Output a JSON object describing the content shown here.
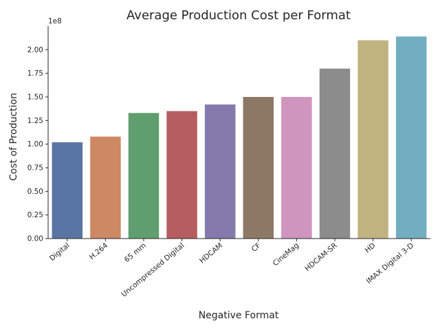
{
  "chart_data": {
    "type": "bar",
    "title": "Average Production Cost per Format",
    "xlabel": "Negative Format",
    "ylabel": "Cost of Production",
    "y_offset_label": "1e8",
    "y_scale": 100000000,
    "ylim": [
      0,
      2.25
    ],
    "yticks": [
      0.0,
      0.25,
      0.5,
      0.75,
      1.0,
      1.25,
      1.5,
      1.75,
      2.0
    ],
    "ytick_labels": [
      "0.00",
      "0.25",
      "0.50",
      "0.75",
      "1.00",
      "1.25",
      "1.50",
      "1.75",
      "2.00"
    ],
    "categories": [
      "Digital",
      "H.264",
      "65 mm",
      "Uncompressed Digital",
      "HDCAM",
      "CF",
      "CineMag",
      "HDCAM-SR",
      "HD",
      "IMAX Digital 3-D"
    ],
    "values": [
      1.02,
      1.08,
      1.33,
      1.35,
      1.42,
      1.5,
      1.5,
      1.8,
      2.1,
      2.14
    ],
    "colors": [
      "#5975a4",
      "#cc8963",
      "#5f9e6e",
      "#b55d60",
      "#857aab",
      "#8d7866",
      "#d095bf",
      "#8c8c8c",
      "#c1b37f",
      "#71aec0"
    ],
    "grid": false,
    "legend": "none"
  }
}
